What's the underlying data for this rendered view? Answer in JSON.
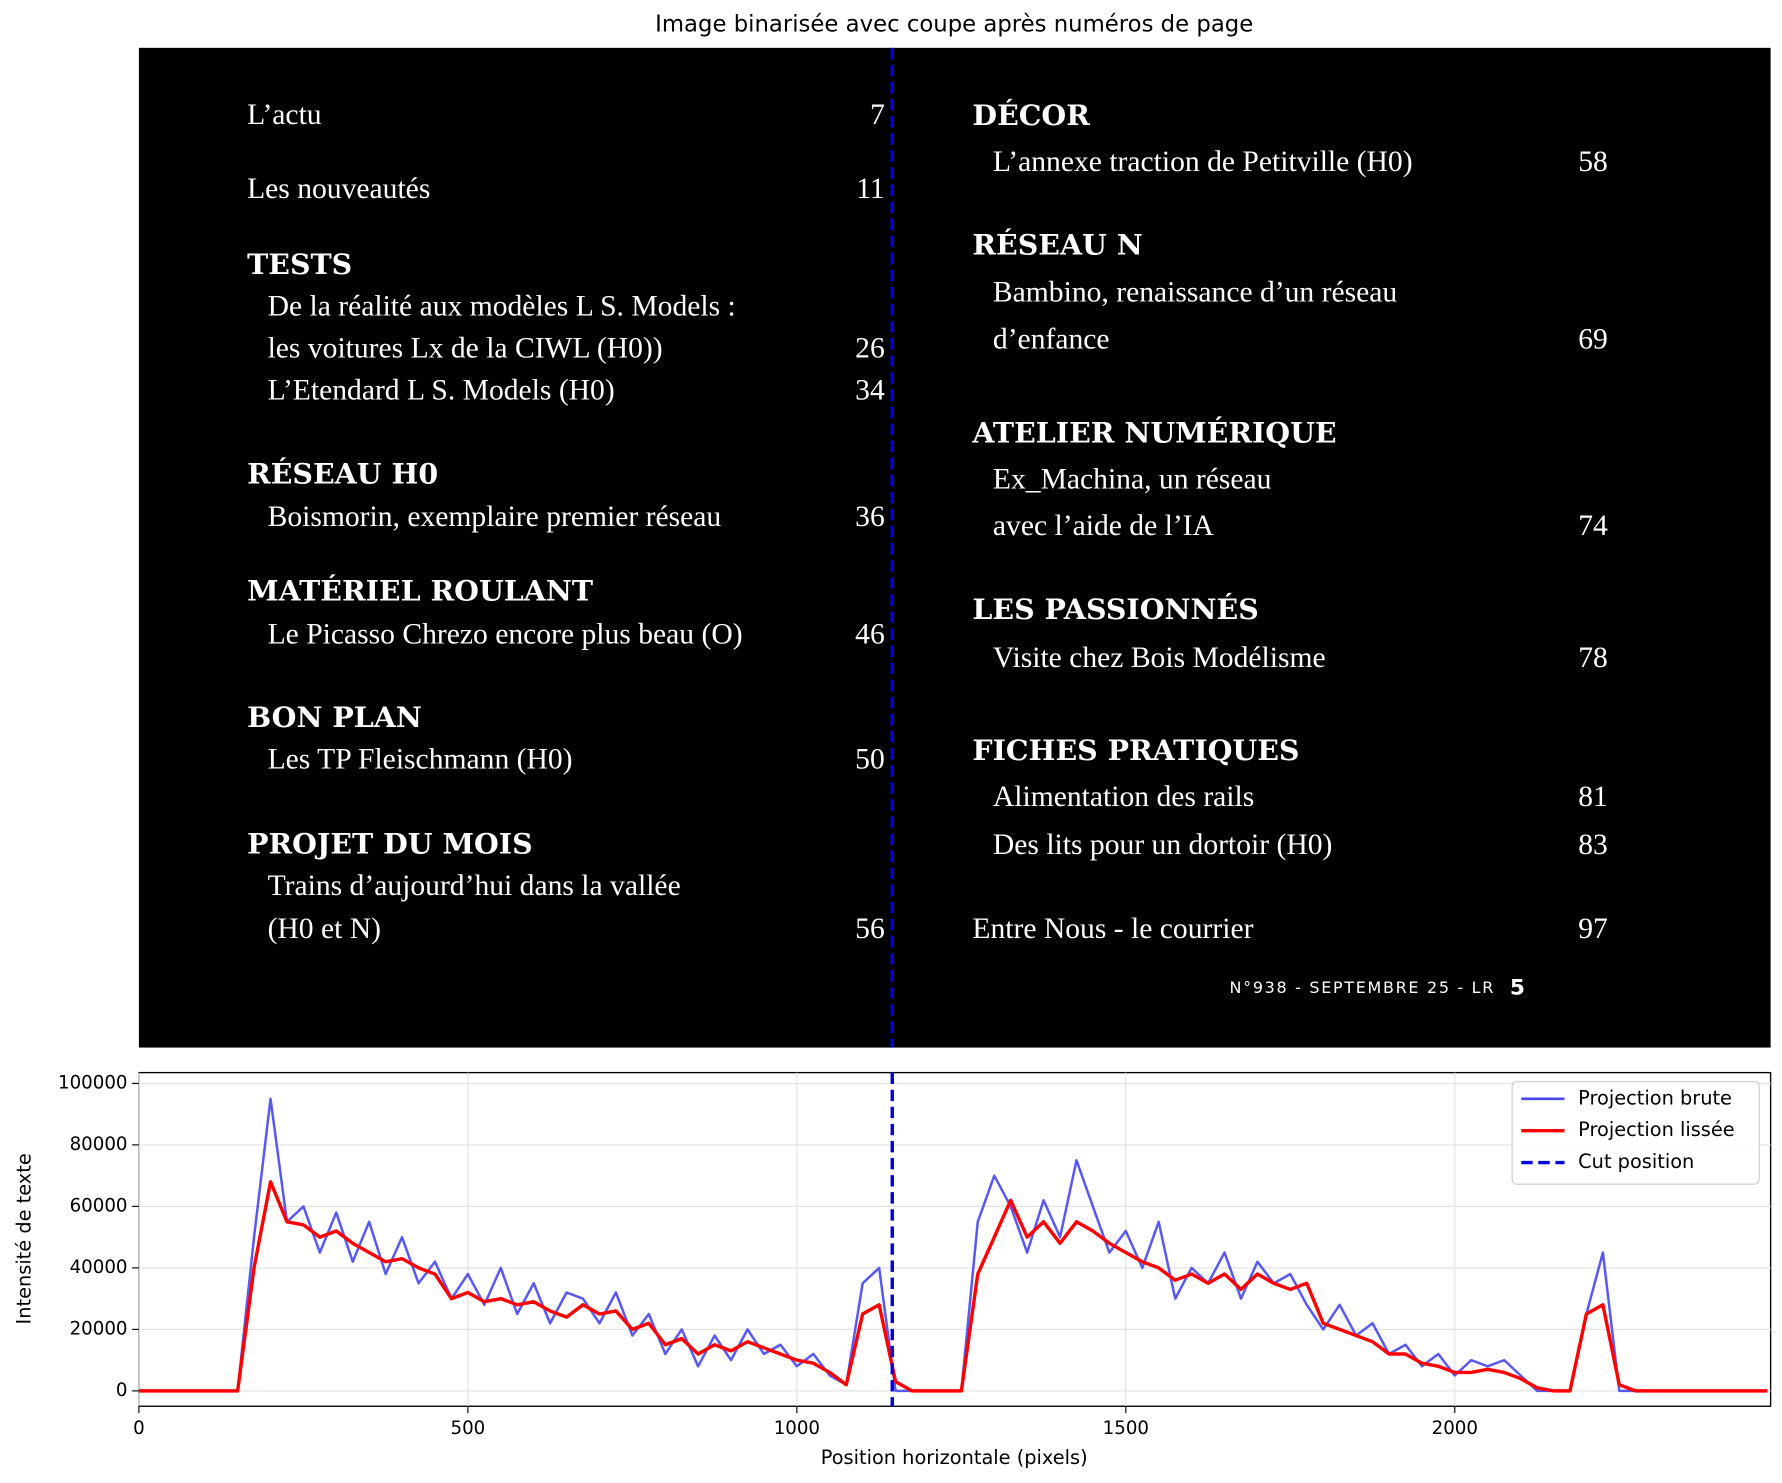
{
  "chart_data": [
    {
      "type": "image",
      "title": "Image binarisée avec coupe après numéros de page",
      "left": [
        {
          "entry": "L’actu",
          "page": 7
        },
        {
          "entry": "Les nouveautés",
          "page": 11
        },
        {
          "heading": "TESTS"
        },
        {
          "item": "De la réalité aux modèles L  S. Models :"
        },
        {
          "item": "les voitures Lx de la CIWL (H0))",
          "page": 26
        },
        {
          "item": "L’Etendard L  S. Models (H0)",
          "page": 34
        },
        {
          "heading": "RÉSEAU H0"
        },
        {
          "item": "Boismorin, exemplaire premier réseau",
          "page": 36
        },
        {
          "heading": "MATÉRIEL ROULANT"
        },
        {
          "item": "Le Picasso Chrezo encore plus beau (O)",
          "page": 46
        },
        {
          "heading": "BON PLAN"
        },
        {
          "item": "Les TP Fleischmann (H0)",
          "page": 50
        },
        {
          "heading": "PROJET DU MOIS"
        },
        {
          "item": "Trains d’aujourd’hui dans la vallée"
        },
        {
          "item": "(H0 et N)",
          "page": 56
        }
      ],
      "right": [
        {
          "heading": "DÉCOR"
        },
        {
          "item": "L’annexe traction de Petitville (H0)",
          "page": 58
        },
        {
          "heading": "RÉSEAU N"
        },
        {
          "item": "Bambino, renaissance d’un réseau"
        },
        {
          "item": "d’enfance",
          "page": 69
        },
        {
          "heading": "ATELIER NUMÉRIQUE"
        },
        {
          "item": "Ex_Machina, un réseau"
        },
        {
          "item": "avec l’aide de l’IA",
          "page": 74
        },
        {
          "heading": "LES PASSIONNÉS"
        },
        {
          "item": "Visite chez Bois Modélisme",
          "page": 78
        },
        {
          "heading": "FICHES PRATIQUES"
        },
        {
          "item": "Alimentation des rails",
          "page": 81
        },
        {
          "item": "Des lits pour un dortoir (H0)",
          "page": 83
        },
        {
          "entry": "Entre Nous - le courrier",
          "page": 97
        }
      ],
      "footer": {
        "issue": "N°938 - SEPTEMBRE 25 - LR",
        "page": 5
      }
    },
    {
      "type": "line",
      "x_label": "Position horizontale (pixels)",
      "y_label": "Intensité de texte",
      "xlim": [
        0,
        2480
      ],
      "ylim": [
        -5000,
        103500
      ],
      "xticks": [
        0,
        500,
        1000,
        1500,
        2000
      ],
      "yticks": [
        0,
        20000,
        40000,
        60000,
        80000,
        100000
      ],
      "grid": true,
      "legend": "upper right",
      "x": [
        0,
        25,
        50,
        75,
        100,
        125,
        150,
        175,
        200,
        225,
        250,
        275,
        300,
        325,
        350,
        375,
        400,
        425,
        450,
        475,
        500,
        525,
        550,
        575,
        600,
        625,
        650,
        675,
        700,
        725,
        750,
        775,
        800,
        825,
        850,
        875,
        900,
        925,
        950,
        975,
        1000,
        1025,
        1050,
        1075,
        1100,
        1125,
        1150,
        1175,
        1200,
        1225,
        1250,
        1275,
        1300,
        1325,
        1350,
        1375,
        1400,
        1425,
        1450,
        1475,
        1500,
        1525,
        1550,
        1575,
        1600,
        1625,
        1650,
        1675,
        1700,
        1725,
        1750,
        1775,
        1800,
        1825,
        1850,
        1875,
        1900,
        1925,
        1950,
        1975,
        2000,
        2025,
        2050,
        2075,
        2100,
        2125,
        2150,
        2175,
        2200,
        2225,
        2250,
        2275,
        2300,
        2325,
        2350,
        2375,
        2400,
        2425,
        2450,
        2475
      ],
      "series": [
        {
          "name": "Projection brute",
          "color": "#4747ee",
          "width": 2.2,
          "values": [
            0,
            0,
            0,
            0,
            0,
            0,
            0,
            50000,
            95000,
            55000,
            60000,
            45000,
            58000,
            42000,
            55000,
            38000,
            50000,
            35000,
            42000,
            30000,
            38000,
            28000,
            40000,
            25000,
            35000,
            22000,
            32000,
            30000,
            22000,
            32000,
            18000,
            25000,
            12000,
            20000,
            8000,
            18000,
            10000,
            20000,
            12000,
            15000,
            8000,
            12000,
            5000,
            2000,
            35000,
            40000,
            0,
            0,
            0,
            0,
            0,
            55000,
            70000,
            60000,
            45000,
            62000,
            50000,
            75000,
            60000,
            45000,
            52000,
            40000,
            55000,
            30000,
            40000,
            35000,
            45000,
            30000,
            42000,
            35000,
            38000,
            28000,
            20000,
            28000,
            18000,
            22000,
            12000,
            15000,
            8000,
            12000,
            5000,
            10000,
            8000,
            10000,
            5000,
            0,
            0,
            0,
            25000,
            45000,
            0,
            0,
            0,
            0,
            0,
            0,
            0,
            0,
            0,
            0
          ]
        },
        {
          "name": "Projection lissée",
          "color": "#ff0000",
          "width": 3,
          "values": [
            0,
            0,
            0,
            0,
            0,
            0,
            0,
            40000,
            68000,
            55000,
            54000,
            50000,
            52000,
            48000,
            45000,
            42000,
            43000,
            40000,
            38000,
            30000,
            32000,
            29000,
            30000,
            28000,
            29000,
            26000,
            24000,
            28000,
            25000,
            26000,
            20000,
            22000,
            15000,
            17000,
            12000,
            15000,
            13000,
            16000,
            14000,
            12000,
            10000,
            9000,
            6000,
            2000,
            25000,
            28000,
            3000,
            0,
            0,
            0,
            0,
            38000,
            50000,
            62000,
            50000,
            55000,
            48000,
            55000,
            52000,
            48000,
            45000,
            42000,
            40000,
            36000,
            38000,
            35000,
            38000,
            33000,
            38000,
            35000,
            33000,
            35000,
            22000,
            20000,
            18000,
            16000,
            12000,
            12000,
            9000,
            8000,
            6000,
            6000,
            7000,
            6000,
            4000,
            1000,
            0,
            0,
            25000,
            28000,
            2000,
            0,
            0,
            0,
            0,
            0,
            0,
            0,
            0,
            0
          ]
        }
      ],
      "cut": {
        "name": "Cut position",
        "color": "#0000dd",
        "x": 1145
      }
    }
  ]
}
